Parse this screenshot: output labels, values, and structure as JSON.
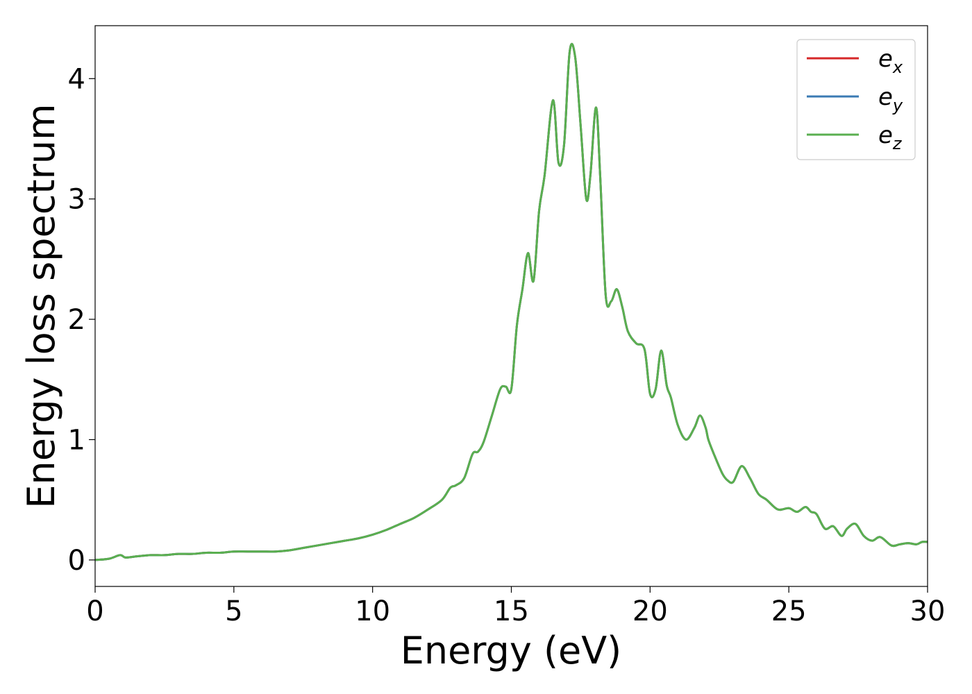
{
  "chart_data": {
    "type": "line",
    "title": "",
    "xlabel": "Energy (eV)",
    "ylabel": "Energy loss spectrum",
    "xlim": [
      0,
      30
    ],
    "ylim": [
      -0.22,
      4.44
    ],
    "xticks": [
      0,
      5,
      10,
      15,
      20,
      25,
      30
    ],
    "xtick_labels": [
      "0",
      "5",
      "10",
      "15",
      "20",
      "25",
      "30"
    ],
    "yticks": [
      0,
      1,
      2,
      3,
      4
    ],
    "ytick_labels": [
      "0",
      "1",
      "2",
      "3",
      "4"
    ],
    "grid": false,
    "legend_position": "top-right",
    "series": [
      {
        "name": "e_x",
        "label_base": "e",
        "label_sub": "x",
        "color": "#d62728",
        "x": [
          0,
          0.5,
          0.9,
          1.1,
          1.5,
          2,
          2.5,
          3,
          3.5,
          4,
          4.5,
          5,
          5.5,
          6,
          6.5,
          7,
          7.5,
          8,
          8.5,
          9,
          9.5,
          10,
          10.5,
          11,
          11.5,
          12,
          12.5,
          12.8,
          13,
          13.3,
          13.6,
          13.8,
          14,
          14.3,
          14.6,
          14.8,
          15,
          15.2,
          15.4,
          15.6,
          15.8,
          16,
          16.2,
          16.5,
          16.7,
          16.9,
          17.1,
          17.3,
          17.5,
          17.7,
          17.85,
          18.05,
          18.2,
          18.4,
          18.6,
          18.8,
          19,
          19.2,
          19.5,
          19.8,
          20,
          20.2,
          20.4,
          20.6,
          20.75,
          21,
          21.3,
          21.6,
          21.8,
          22,
          22.1,
          22.3,
          22.6,
          22.8,
          23,
          23.3,
          23.6,
          23.9,
          24.2,
          24.6,
          25,
          25.3,
          25.6,
          25.8,
          26,
          26.3,
          26.6,
          26.9,
          27.1,
          27.4,
          27.7,
          28,
          28.3,
          28.7,
          29,
          29.3,
          29.6,
          29.8,
          30
        ],
        "y": [
          0.0,
          0.01,
          0.04,
          0.02,
          0.03,
          0.04,
          0.04,
          0.05,
          0.05,
          0.06,
          0.06,
          0.07,
          0.07,
          0.07,
          0.07,
          0.08,
          0.1,
          0.12,
          0.14,
          0.16,
          0.18,
          0.21,
          0.25,
          0.3,
          0.35,
          0.42,
          0.5,
          0.6,
          0.62,
          0.68,
          0.88,
          0.9,
          0.98,
          1.2,
          1.42,
          1.44,
          1.42,
          1.95,
          2.25,
          2.55,
          2.32,
          2.9,
          3.2,
          3.82,
          3.3,
          3.45,
          4.22,
          4.18,
          3.6,
          3.0,
          3.2,
          3.76,
          3.2,
          2.2,
          2.15,
          2.25,
          2.1,
          1.9,
          1.8,
          1.75,
          1.38,
          1.42,
          1.74,
          1.45,
          1.35,
          1.12,
          1.0,
          1.1,
          1.2,
          1.1,
          1.0,
          0.88,
          0.72,
          0.66,
          0.65,
          0.78,
          0.68,
          0.55,
          0.5,
          0.42,
          0.43,
          0.4,
          0.44,
          0.4,
          0.38,
          0.26,
          0.28,
          0.2,
          0.26,
          0.3,
          0.2,
          0.16,
          0.19,
          0.12,
          0.13,
          0.14,
          0.13,
          0.15,
          0.15
        ]
      },
      {
        "name": "e_y",
        "label_base": "e",
        "label_sub": "y",
        "color": "#3a7ab3",
        "x": [
          0,
          0.5,
          0.9,
          1.1,
          1.5,
          2,
          2.5,
          3,
          3.5,
          4,
          4.5,
          5,
          5.5,
          6,
          6.5,
          7,
          7.5,
          8,
          8.5,
          9,
          9.5,
          10,
          10.5,
          11,
          11.5,
          12,
          12.5,
          12.8,
          13,
          13.3,
          13.6,
          13.8,
          14,
          14.3,
          14.6,
          14.8,
          15,
          15.2,
          15.4,
          15.6,
          15.8,
          16,
          16.2,
          16.5,
          16.7,
          16.9,
          17.1,
          17.3,
          17.5,
          17.7,
          17.85,
          18.05,
          18.2,
          18.4,
          18.6,
          18.8,
          19,
          19.2,
          19.5,
          19.8,
          20,
          20.2,
          20.4,
          20.6,
          20.75,
          21,
          21.3,
          21.6,
          21.8,
          22,
          22.1,
          22.3,
          22.6,
          22.8,
          23,
          23.3,
          23.6,
          23.9,
          24.2,
          24.6,
          25,
          25.3,
          25.6,
          25.8,
          26,
          26.3,
          26.6,
          26.9,
          27.1,
          27.4,
          27.7,
          28,
          28.3,
          28.7,
          29,
          29.3,
          29.6,
          29.8,
          30
        ],
        "y": [
          0.0,
          0.01,
          0.04,
          0.02,
          0.03,
          0.04,
          0.04,
          0.05,
          0.05,
          0.06,
          0.06,
          0.07,
          0.07,
          0.07,
          0.07,
          0.08,
          0.1,
          0.12,
          0.14,
          0.16,
          0.18,
          0.21,
          0.25,
          0.3,
          0.35,
          0.42,
          0.5,
          0.6,
          0.62,
          0.68,
          0.88,
          0.9,
          0.98,
          1.2,
          1.42,
          1.44,
          1.42,
          1.95,
          2.25,
          2.55,
          2.32,
          2.9,
          3.2,
          3.82,
          3.3,
          3.45,
          4.22,
          4.18,
          3.6,
          3.0,
          3.2,
          3.76,
          3.2,
          2.2,
          2.15,
          2.25,
          2.1,
          1.9,
          1.8,
          1.75,
          1.38,
          1.42,
          1.74,
          1.45,
          1.35,
          1.12,
          1.0,
          1.1,
          1.2,
          1.1,
          1.0,
          0.88,
          0.72,
          0.66,
          0.65,
          0.78,
          0.68,
          0.55,
          0.5,
          0.42,
          0.43,
          0.4,
          0.44,
          0.4,
          0.38,
          0.26,
          0.28,
          0.2,
          0.26,
          0.3,
          0.2,
          0.16,
          0.19,
          0.12,
          0.13,
          0.14,
          0.13,
          0.15,
          0.15
        ]
      },
      {
        "name": "e_z",
        "label_base": "e",
        "label_sub": "z",
        "color": "#5aaf50",
        "x": [
          0,
          0.5,
          0.9,
          1.1,
          1.5,
          2,
          2.5,
          3,
          3.5,
          4,
          4.5,
          5,
          5.5,
          6,
          6.5,
          7,
          7.5,
          8,
          8.5,
          9,
          9.5,
          10,
          10.5,
          11,
          11.5,
          12,
          12.5,
          12.8,
          13,
          13.3,
          13.6,
          13.8,
          14,
          14.3,
          14.6,
          14.8,
          15,
          15.2,
          15.4,
          15.6,
          15.8,
          16,
          16.2,
          16.5,
          16.7,
          16.9,
          17.1,
          17.3,
          17.5,
          17.7,
          17.85,
          18.05,
          18.2,
          18.4,
          18.6,
          18.8,
          19,
          19.2,
          19.5,
          19.8,
          20,
          20.2,
          20.4,
          20.6,
          20.75,
          21,
          21.3,
          21.6,
          21.8,
          22,
          22.1,
          22.3,
          22.6,
          22.8,
          23,
          23.3,
          23.6,
          23.9,
          24.2,
          24.6,
          25,
          25.3,
          25.6,
          25.8,
          26,
          26.3,
          26.6,
          26.9,
          27.1,
          27.4,
          27.7,
          28,
          28.3,
          28.7,
          29,
          29.3,
          29.6,
          29.8,
          30
        ],
        "y": [
          0.0,
          0.01,
          0.04,
          0.02,
          0.03,
          0.04,
          0.04,
          0.05,
          0.05,
          0.06,
          0.06,
          0.07,
          0.07,
          0.07,
          0.07,
          0.08,
          0.1,
          0.12,
          0.14,
          0.16,
          0.18,
          0.21,
          0.25,
          0.3,
          0.35,
          0.42,
          0.5,
          0.6,
          0.62,
          0.68,
          0.88,
          0.9,
          0.98,
          1.2,
          1.42,
          1.44,
          1.42,
          1.95,
          2.25,
          2.55,
          2.32,
          2.9,
          3.2,
          3.82,
          3.3,
          3.45,
          4.22,
          4.18,
          3.6,
          3.0,
          3.2,
          3.76,
          3.2,
          2.2,
          2.15,
          2.25,
          2.1,
          1.9,
          1.8,
          1.75,
          1.38,
          1.42,
          1.74,
          1.45,
          1.35,
          1.12,
          1.0,
          1.1,
          1.2,
          1.1,
          1.0,
          0.88,
          0.72,
          0.66,
          0.65,
          0.78,
          0.68,
          0.55,
          0.5,
          0.42,
          0.43,
          0.4,
          0.44,
          0.4,
          0.38,
          0.26,
          0.28,
          0.2,
          0.26,
          0.3,
          0.2,
          0.16,
          0.19,
          0.12,
          0.13,
          0.14,
          0.13,
          0.15,
          0.15
        ]
      }
    ]
  }
}
